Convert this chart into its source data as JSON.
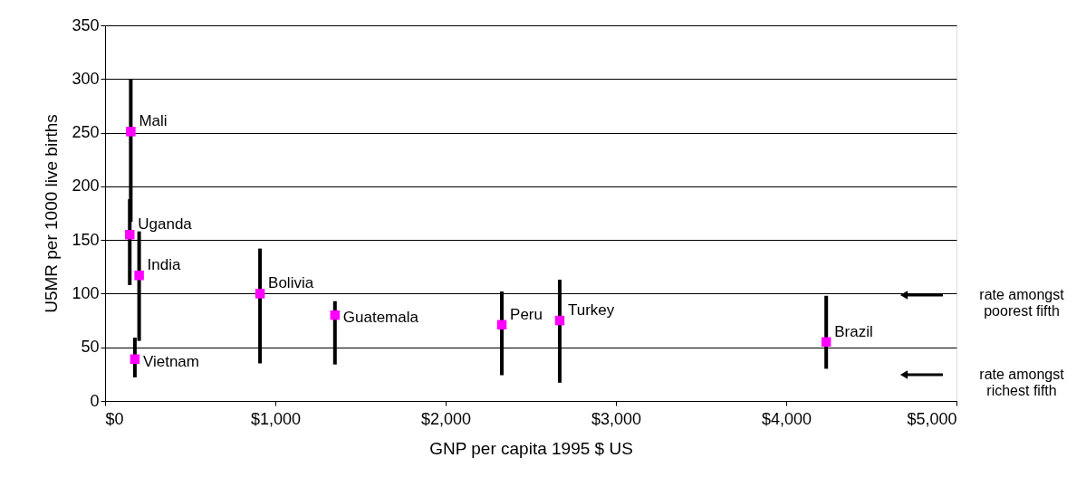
{
  "chart_data": {
    "type": "scatter",
    "xlabel": "GNP per capita 1995 $ US",
    "ylabel": "U5MR per 1000 live births",
    "series": [
      {
        "x": [
          151,
          145,
          200,
          175,
          910,
          1350,
          2330,
          2670,
          4235
        ],
        "values": [
          251,
          155,
          117,
          39,
          100,
          80,
          71,
          75,
          55
        ],
        "errors": [
          [
            167,
            300
          ],
          [
            108,
            188
          ],
          [
            56,
            158
          ],
          [
            22,
            59
          ],
          [
            35,
            142
          ],
          [
            34,
            93
          ],
          [
            24,
            102
          ],
          [
            17,
            113
          ],
          [
            30,
            98
          ]
        ],
        "color": "#ff00ff"
      }
    ],
    "xlim": [
      0,
      5000
    ],
    "xticks": [
      {
        "value": 0,
        "label": "$0"
      },
      {
        "value": 1000,
        "label": "$1,000"
      },
      {
        "value": 2000,
        "label": "$2,000"
      },
      {
        "value": 3000,
        "label": "$3,000"
      },
      {
        "value": 4000,
        "label": "$4,000"
      },
      {
        "value": 5000,
        "label": "$5,000"
      }
    ],
    "ylim": [
      0,
      350
    ],
    "yticks": [
      0,
      50,
      100,
      150,
      200,
      250,
      300,
      350
    ],
    "grid": "y",
    "marker": "square",
    "annotations": [
      {
        "text": "Mali",
        "x": 151,
        "y": 251
      },
      {
        "text": "Uganda",
        "x": 145,
        "y": 155
      },
      {
        "text": "India",
        "x": 200,
        "y": 117
      },
      {
        "text": "Vietnam",
        "x": 175,
        "y": 39
      },
      {
        "text": "Bolivia",
        "x": 910,
        "y": 100
      },
      {
        "text": "Guatemala",
        "x": 1350,
        "y": 80
      },
      {
        "text": "Peru",
        "x": 2330,
        "y": 71
      },
      {
        "text": "Turkey",
        "x": 2670,
        "y": 75
      },
      {
        "text": "Brazil",
        "x": 4235,
        "y": 55
      },
      "rate amongst\npoorest fifth",
      "rate amongst\nrichest fifth"
    ]
  }
}
